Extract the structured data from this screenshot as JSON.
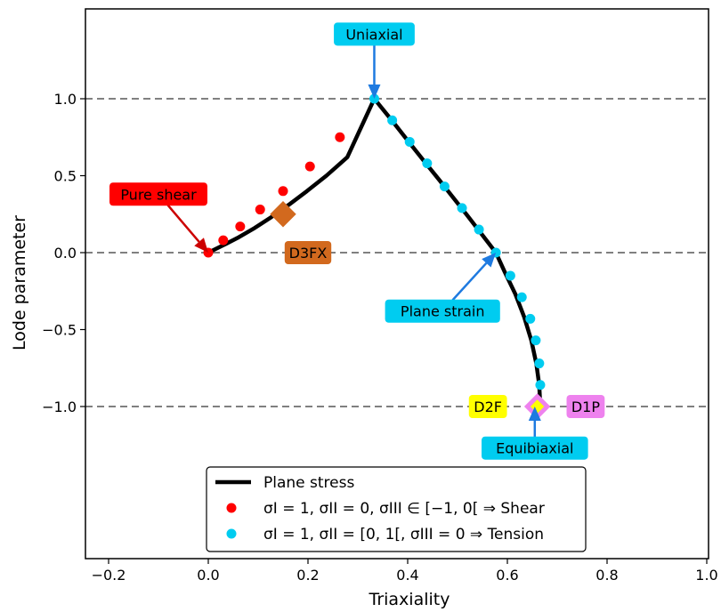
{
  "chart_data": {
    "type": "line",
    "xlabel": "Triaxiality",
    "ylabel": "Lode parameter",
    "xlim": [
      -0.25,
      1.0
    ],
    "ylim": [
      -2.0,
      1.6
    ],
    "xticks": [
      -0.2,
      0.0,
      0.2,
      0.4,
      0.6,
      0.8,
      1.0
    ],
    "xtick_labels": [
      "−0.2",
      "0.0",
      "0.2",
      "0.4",
      "0.6",
      "0.8",
      "1.0"
    ],
    "yticks": [
      1.0,
      0.5,
      0.0,
      -0.5,
      -1.0
    ],
    "ytick_labels": [
      "1.0",
      "0.5",
      "0.0",
      "−0.5",
      "−1.0"
    ],
    "hlines": [
      1.0,
      0.0,
      -1.0
    ],
    "hline_color": "#808080",
    "curve": {
      "name": "Plane stress",
      "color": "#000000",
      "x": [
        0.0,
        0.031,
        0.061,
        0.093,
        0.126,
        0.161,
        0.198,
        0.237,
        0.279,
        0.333,
        0.368,
        0.402,
        0.434,
        0.464,
        0.493,
        0.52,
        0.546,
        0.577,
        0.594,
        0.616,
        0.634,
        0.648,
        0.658,
        0.664,
        0.666
      ],
      "y": [
        0.0,
        0.05,
        0.1,
        0.16,
        0.23,
        0.31,
        0.4,
        0.5,
        0.62,
        1.0,
        0.86,
        0.72,
        0.59,
        0.47,
        0.35,
        0.24,
        0.13,
        0.0,
        -0.12,
        -0.27,
        -0.42,
        -0.57,
        -0.72,
        -0.86,
        -1.0
      ]
    },
    "series": [
      {
        "name": "shear",
        "color": "#ff0000",
        "x": [
          0.0,
          0.03,
          0.064,
          0.104,
          0.15,
          0.204,
          0.264
        ],
        "y": [
          0.0,
          0.08,
          0.17,
          0.28,
          0.4,
          0.56,
          0.75
        ]
      },
      {
        "name": "tension",
        "color": "#00ccf0",
        "x": [
          0.333,
          0.369,
          0.404,
          0.439,
          0.474,
          0.509,
          0.543,
          0.577,
          0.606,
          0.629,
          0.646,
          0.657,
          0.664,
          0.666,
          0.666
        ],
        "y": [
          1.0,
          0.86,
          0.72,
          0.58,
          0.43,
          0.29,
          0.15,
          0.0,
          -0.15,
          -0.29,
          -0.43,
          -0.57,
          -0.72,
          -0.86,
          -1.0
        ]
      }
    ],
    "markers": [
      {
        "label": "D3FX",
        "x": 0.15,
        "y": 0.25,
        "shape": "diamond",
        "fill": "#d2691e",
        "stroke": "#d2691e"
      },
      {
        "label": "D1P",
        "x": 0.66,
        "y": -1.0,
        "shape": "diamond",
        "fill": "#ee82ee",
        "stroke": "#ee82ee"
      },
      {
        "label": "D2F",
        "x": 0.66,
        "y": -1.0,
        "shape": "diamond-small",
        "fill": "#ffff00",
        "stroke": "#ffff00"
      }
    ],
    "annotations": [
      {
        "text": "Uniaxial",
        "box_color": "#00ccf0",
        "tx": 0.333,
        "ty": 1.42,
        "ax": 0.333,
        "ay": 1.0,
        "arrow_color": "#1e7ae0"
      },
      {
        "text": "Pure shear",
        "box_color": "#ff0000",
        "tx": -0.1,
        "ty": 0.38,
        "ax": 0.0,
        "ay": 0.0,
        "arrow_color": "#cc0000"
      },
      {
        "text": "D3FX",
        "box_color": "#d2691e",
        "tx": 0.2,
        "ty": 0.0
      },
      {
        "text": "Plane strain",
        "box_color": "#00ccf0",
        "tx": 0.47,
        "ty": -0.38,
        "ax": 0.577,
        "ay": 0.0,
        "arrow_color": "#1e7ae0"
      },
      {
        "text": "D2F",
        "box_color": "#ffff00",
        "tx": 0.561,
        "ty": -1.0
      },
      {
        "text": "D1P",
        "box_color": "#ee82ee",
        "tx": 0.757,
        "ty": -1.0
      },
      {
        "text": "Equibiaxial",
        "box_color": "#00ccf0",
        "tx": 0.655,
        "ty": -1.27,
        "ax": 0.655,
        "ay": -1.0,
        "arrow_color": "#1e7ae0"
      }
    ],
    "legend": {
      "placement": "lower-center",
      "entries": [
        {
          "kind": "line",
          "color": "#000000",
          "label": "Plane stress"
        },
        {
          "kind": "dot",
          "color": "#ff0000",
          "label": "σI = 1, σII = 0, σIII ∈ [−1, 0[  ⇒  Shear"
        },
        {
          "kind": "dot",
          "color": "#00ccf0",
          "label": "σI = 1, σII = [0, 1[, σIII = 0  ⇒  Tension"
        }
      ]
    },
    "grid": false
  }
}
